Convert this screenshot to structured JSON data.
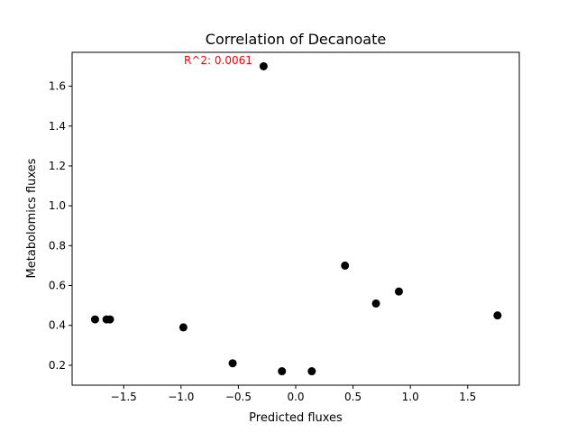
{
  "chart_data": {
    "type": "scatter",
    "title": "Correlation of Decanoate",
    "xlabel": "Predicted fluxes",
    "ylabel": "Metabolomics fluxes",
    "annotation": "R^2: 0.0061",
    "colors": {
      "points": "#000000",
      "annotation": "#ff0000",
      "text": "#000000"
    },
    "xlim": [
      -1.95,
      1.95
    ],
    "ylim": [
      0.1,
      1.77
    ],
    "x_ticks": [
      -1.5,
      -1.0,
      -0.5,
      0.0,
      0.5,
      1.0,
      1.5
    ],
    "x_tick_labels": [
      "−1.5",
      "−1.0",
      "−0.5",
      "0.0",
      "0.5",
      "1.0",
      "1.5"
    ],
    "y_ticks": [
      0.2,
      0.4,
      0.6,
      0.8,
      1.0,
      1.2,
      1.4,
      1.6
    ],
    "y_tick_labels": [
      "0.2",
      "0.4",
      "0.6",
      "0.8",
      "1.0",
      "1.2",
      "1.4",
      "1.6"
    ],
    "grid": false,
    "points": [
      {
        "x": -1.75,
        "y": 0.43
      },
      {
        "x": -1.65,
        "y": 0.43
      },
      {
        "x": -1.62,
        "y": 0.43
      },
      {
        "x": -0.98,
        "y": 0.39
      },
      {
        "x": -0.55,
        "y": 0.21
      },
      {
        "x": -0.28,
        "y": 1.7
      },
      {
        "x": -0.12,
        "y": 0.17
      },
      {
        "x": 0.14,
        "y": 0.17
      },
      {
        "x": 0.43,
        "y": 0.7
      },
      {
        "x": 0.7,
        "y": 0.51
      },
      {
        "x": 0.9,
        "y": 0.57
      },
      {
        "x": 1.76,
        "y": 0.45
      }
    ]
  }
}
